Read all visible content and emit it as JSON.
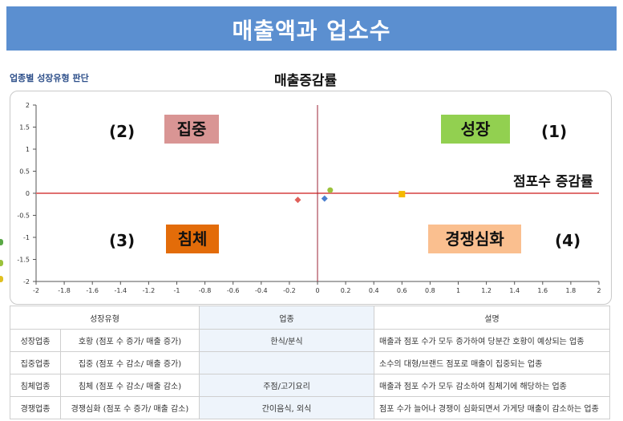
{
  "header": {
    "title": "매출액과 업소수"
  },
  "subtitle": "업종별 성장유형 판단",
  "chart_data": {
    "type": "scatter",
    "xlabel": "점포수 증감률",
    "ylabel": "매출증감률",
    "xlim": [
      -2,
      2
    ],
    "ylim": [
      -2,
      2
    ],
    "x_ticks": [
      "-2",
      "-1.8",
      "-1.6",
      "-1.4",
      "-1.2",
      "-1",
      "-0.8",
      "-0.6",
      "-0.4",
      "-0.2",
      "0",
      "0.2",
      "0.4",
      "0.6",
      "0.8",
      "1",
      "1.2",
      "1.4",
      "1.6",
      "1.8",
      "2"
    ],
    "y_ticks": [
      "2",
      "1.5",
      "1",
      "0.5",
      "0",
      "-0.5",
      "-1",
      "-1.5",
      "-2"
    ],
    "points": [
      {
        "x": -0.14,
        "y": -0.15,
        "color": "#e0605a",
        "shape": "diamond"
      },
      {
        "x": 0.05,
        "y": -0.12,
        "color": "#4a7fd0",
        "shape": "diamond"
      },
      {
        "x": 0.09,
        "y": 0.07,
        "color": "#9bc23b",
        "shape": "circle"
      },
      {
        "x": 0.6,
        "y": -0.02,
        "color": "#f5b800",
        "shape": "square"
      }
    ],
    "quadrants": [
      {
        "number": "(2)",
        "name": "집중",
        "color": "#d99594",
        "position": "top-left"
      },
      {
        "number": "(1)",
        "name": "성장",
        "color": "#92d050",
        "position": "top-right"
      },
      {
        "number": "(3)",
        "name": "침체",
        "color": "#e36c09",
        "position": "bottom-left"
      },
      {
        "number": "(4)",
        "name": "경쟁심화",
        "color": "#fabf8f",
        "position": "bottom-right"
      }
    ],
    "hline_color": "#e07070",
    "vline_color": "#9b2335"
  },
  "table": {
    "headers": [
      "성장유형",
      "업종",
      "설명"
    ],
    "rows": [
      {
        "type": "성장업종",
        "name": "호황 (점포 수 증가/ 매출 증가)",
        "biz": "한식/분식",
        "desc": "매출과 점포 수가 모두 증가하여 당분간 호황이 예상되는 업종"
      },
      {
        "type": "집중업종",
        "name": "집중 (점포 수 감소/ 매출 증가)",
        "biz": "",
        "desc": "소수의 대형/브랜드 점포로 매출이 집중되는 업종"
      },
      {
        "type": "침체업종",
        "name": "침체 (점포 수 감소/ 매출 감소)",
        "biz": "주점/고기요리",
        "desc": "매출과 점포 수가 모두 감소하여 침체기에 해당하는 업종"
      },
      {
        "type": "경쟁업종",
        "name": "경쟁심화 (점포 수 증가/ 매출 감소)",
        "biz": "간이음식, 외식",
        "desc": "점포 수가 늘어나 경쟁이 심화되면서 가게당 매출이 감소하는 업종"
      }
    ]
  }
}
